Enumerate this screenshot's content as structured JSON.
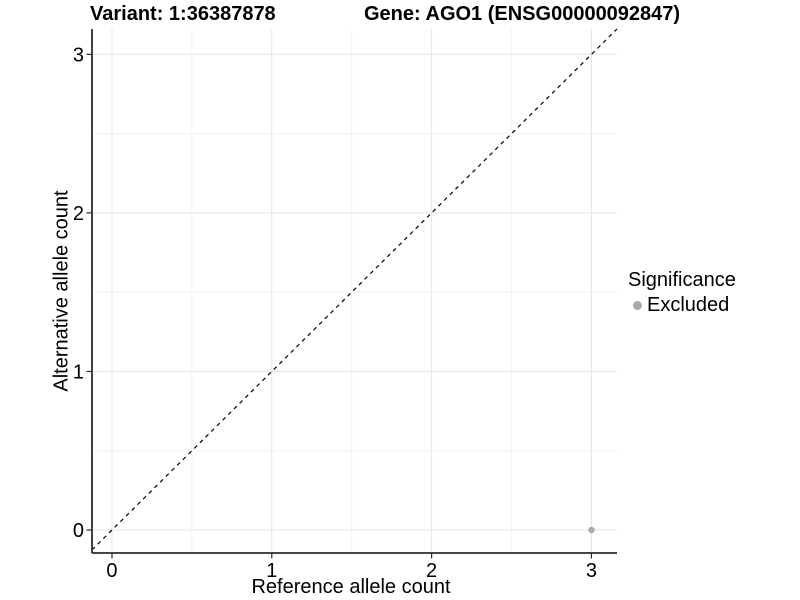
{
  "figure": {
    "background": "#ffffff",
    "title_variant": "Variant: 1:36387878",
    "title_gene": "Gene: AGO1 (ENSG00000092847)"
  },
  "axes": {
    "xlabel": "Reference allele count",
    "ylabel": "Alternative allele count"
  },
  "legend": {
    "title": "Significance",
    "items": [
      {
        "label": "Excluded",
        "color": "#a9a9a9"
      }
    ]
  },
  "chart_data": {
    "type": "scatter",
    "title": "Variant: 1:36387878        Gene: AGO1 (ENSG00000092847)",
    "xlabel": "Reference allele count",
    "ylabel": "Alternative allele count",
    "xlim": [
      -0.125,
      3.16
    ],
    "ylim": [
      -0.145,
      3.16
    ],
    "xticks": [
      0,
      1,
      2,
      3
    ],
    "yticks": [
      0,
      1,
      2,
      3
    ],
    "minor_gridlines_x": [
      0.5,
      1.5,
      2.5
    ],
    "minor_gridlines_y": [
      0.5,
      1.5,
      2.5
    ],
    "grid": "on",
    "legend_position": "right",
    "legend_title": "Significance",
    "series": [
      {
        "name": "Excluded",
        "color": "#a9a9a9",
        "points": [
          {
            "x": 3,
            "y": 0
          }
        ]
      }
    ],
    "reference_line": {
      "kind": "identity-y-equals-x",
      "style": "dashed",
      "color": "#000000"
    }
  },
  "style": {
    "grid_major": "#e5e5e5",
    "grid_minor": "#f2f2f2",
    "axis_line": "#2b2b2b",
    "tick_color": "#2b2b2b",
    "tick_label_color": "#000000",
    "point_color": "#a9a9a9"
  }
}
